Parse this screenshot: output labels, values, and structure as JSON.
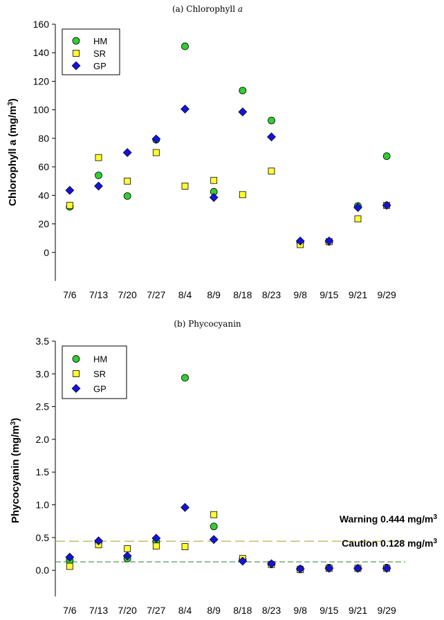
{
  "colors": {
    "HM": "#33cc33",
    "SR": "#ffff33",
    "GP": "#1414d4",
    "warning_line": "#9e9e1e",
    "caution_line": "#2e7d32"
  },
  "chart_data": [
    {
      "type": "scatter",
      "title_prefix": "(a)  Chlorophyll ",
      "title_italic": "a",
      "ylabel": "Chlorophyll a (mg/m",
      "ylabel_sup": "3",
      "ylabel_suffix": ")",
      "ylim": [
        -20,
        160
      ],
      "yticks": [
        "0",
        "20",
        "40",
        "60",
        "80",
        "100",
        "120",
        "140",
        "160"
      ],
      "categories": [
        "7/6",
        "7/13",
        "7/20",
        "7/27",
        "8/4",
        "8/9",
        "8/18",
        "8/23",
        "9/8",
        "9/15",
        "9/21",
        "9/29"
      ],
      "legend_position": "top-left",
      "series": [
        {
          "name": "HM",
          "marker": "circle",
          "values": [
            32,
            54,
            39.5,
            79,
            144.5,
            42.5,
            113.5,
            92.5,
            7,
            7.5,
            32.5,
            67.5
          ]
        },
        {
          "name": "SR",
          "marker": "square",
          "values": [
            33,
            66.5,
            50,
            70,
            46.5,
            50.5,
            40.5,
            57,
            5.5,
            7.5,
            23.5,
            33
          ]
        },
        {
          "name": "GP",
          "marker": "diamond",
          "values": [
            43.5,
            46.5,
            70,
            79.5,
            100.5,
            38.5,
            98.5,
            81,
            8,
            8,
            31.5,
            33
          ]
        }
      ]
    },
    {
      "type": "scatter",
      "title": "(b)  Phycocyanin",
      "ylabel": "Phycocyanin (mg/m",
      "ylabel_sup": "3",
      "ylabel_suffix": ")",
      "ylim": [
        -0.4,
        3.5
      ],
      "yticks": [
        "0.0",
        "0.5",
        "1.0",
        "1.5",
        "2.0",
        "2.5",
        "3.0",
        "3.5"
      ],
      "categories": [
        "7/6",
        "7/13",
        "7/20",
        "7/27",
        "8/4",
        "8/9",
        "8/18",
        "8/23",
        "9/8",
        "9/15",
        "9/21",
        "9/29"
      ],
      "legend_position": "top-left",
      "thresholds": [
        {
          "label": "Warning 0.444 mg/m",
          "sup": "3",
          "value": 0.444
        },
        {
          "label": "Caution 0.128 mg/m",
          "sup": "3",
          "value": 0.128
        }
      ],
      "series": [
        {
          "name": "HM",
          "marker": "circle",
          "values": [
            0.15,
            0.43,
            0.18,
            0.44,
            2.94,
            0.67,
            0.17,
            0.09,
            0.02,
            0.04,
            0.03,
            0.04
          ]
        },
        {
          "name": "SR",
          "marker": "square",
          "values": [
            0.06,
            0.39,
            0.33,
            0.37,
            0.36,
            0.85,
            0.18,
            0.09,
            0.01,
            0.03,
            0.03,
            0.03
          ]
        },
        {
          "name": "GP",
          "marker": "diamond",
          "values": [
            0.2,
            0.45,
            0.22,
            0.49,
            0.96,
            0.47,
            0.14,
            0.1,
            0.02,
            0.03,
            0.03,
            0.03
          ]
        }
      ]
    }
  ]
}
